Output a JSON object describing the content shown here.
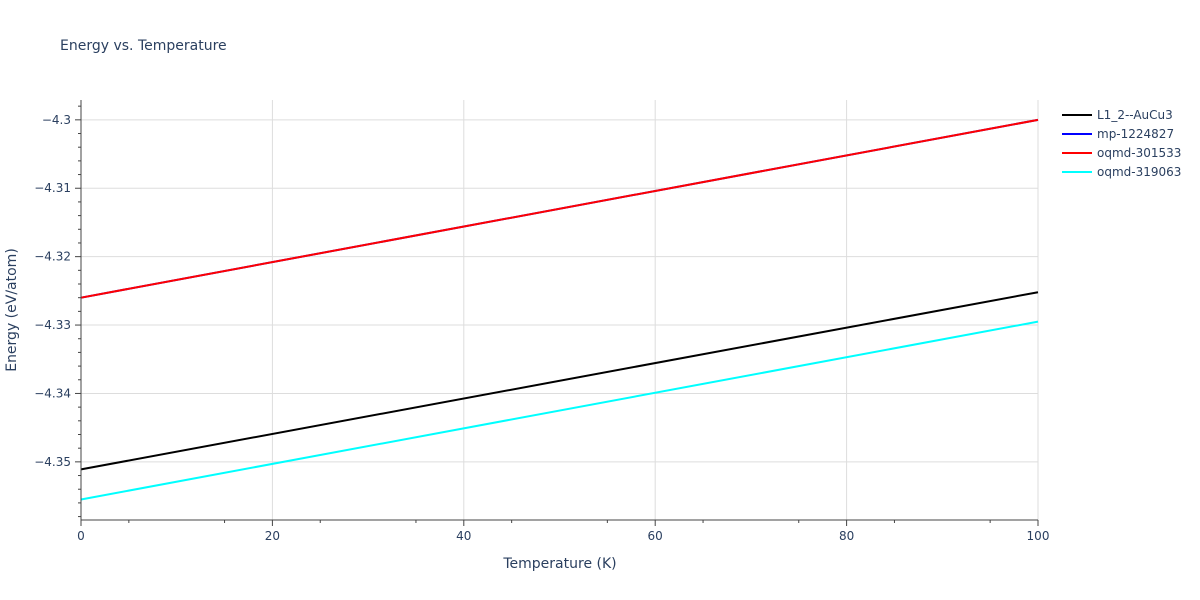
{
  "chart_data": {
    "type": "line",
    "title": "Energy vs. Temperature",
    "xlabel": "Temperature (K)",
    "ylabel": "Energy (eV/atom)",
    "xlim": [
      0,
      100
    ],
    "ylim": [
      -4.3585,
      -4.2971
    ],
    "x_ticks": [
      0,
      20,
      40,
      60,
      80,
      100
    ],
    "x_tick_labels": [
      "0",
      "20",
      "40",
      "60",
      "80",
      "100"
    ],
    "y_ticks": [
      -4.3,
      -4.31,
      -4.32,
      -4.33,
      -4.34,
      -4.35
    ],
    "y_tick_labels": [
      "−4.3",
      "−4.31",
      "−4.32",
      "−4.33",
      "−4.34",
      "−4.35"
    ],
    "grid": true,
    "legend_position": "top-right",
    "series": [
      {
        "name": "L1_2--AuCu3",
        "color": "#000000",
        "x": [
          0,
          100
        ],
        "y": [
          -4.3511,
          -4.3252
        ]
      },
      {
        "name": "mp-1224827",
        "color": "#0000ff",
        "x": [
          0,
          100
        ],
        "y": [
          -4.326,
          -4.3
        ]
      },
      {
        "name": "oqmd-301533",
        "color": "#ff0000",
        "x": [
          0,
          100
        ],
        "y": [
          -4.326,
          -4.3
        ]
      },
      {
        "name": "oqmd-319063",
        "color": "#00ffff",
        "x": [
          0,
          100
        ],
        "y": [
          -4.3555,
          -4.3295
        ]
      }
    ]
  }
}
